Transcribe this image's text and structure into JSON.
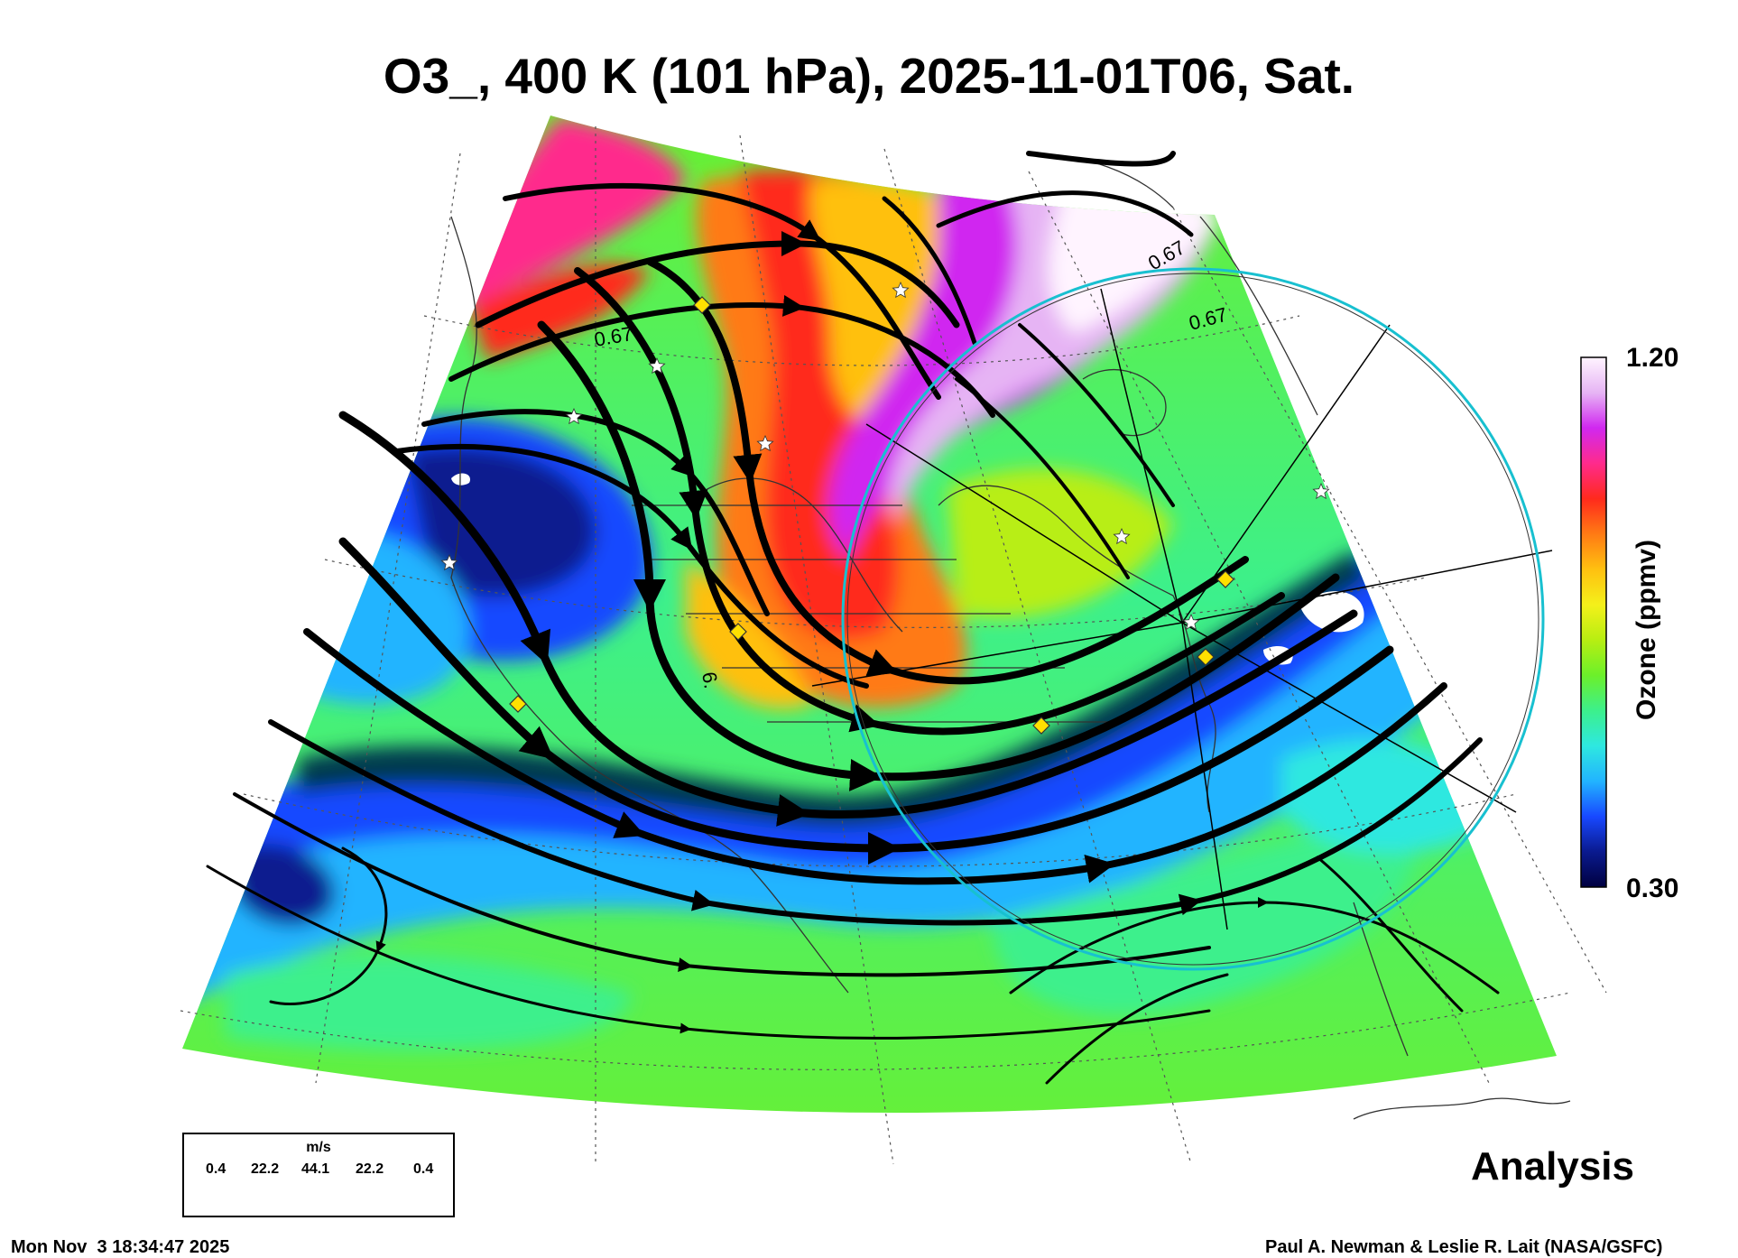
{
  "title": "O3_, 400 K (101 hPa), 2025-11-01T06, Sat.",
  "colorbar": {
    "max_label": "1.20",
    "min_label": "0.30",
    "title": "Ozone (ppmv)",
    "colors": [
      "#000040",
      "#0a1a8f",
      "#1848ff",
      "#22b4ff",
      "#2ee8e0",
      "#3cf08c",
      "#6cf02a",
      "#b8ee12",
      "#f4f01a",
      "#ffc010",
      "#ff7a14",
      "#ff2a1c",
      "#ff2a8c",
      "#d028f0",
      "#e6b4f4",
      "#fff4ff"
    ]
  },
  "contour_labels": [
    "0.67",
    "0.67",
    "0.67",
    "6."
  ],
  "wind_legend": {
    "unit": "m/s",
    "ticks": [
      "0.4",
      "22.2",
      "44.1",
      "22.2",
      "0.4"
    ]
  },
  "stamp": "Analysis",
  "footer": {
    "left": "Mon Nov  3 18:34:47 2025",
    "right": "Paul A. Newman & Leslie R. Lait (NASA/GSFC)"
  },
  "markers": {
    "star_color": "#ffffff",
    "diamond_color": "#ffe000",
    "circle_color": "#18c0d0"
  }
}
